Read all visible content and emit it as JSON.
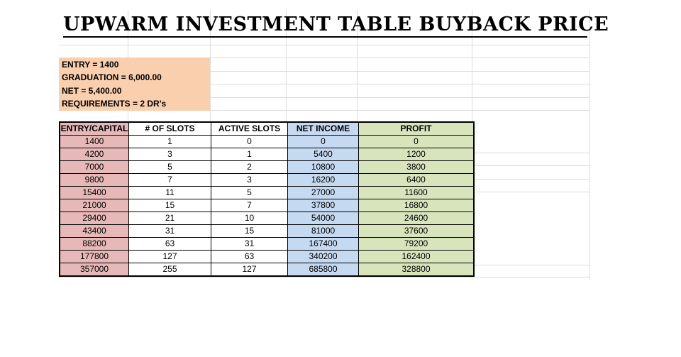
{
  "title": "UPWARM INVESTMENT TABLE BUYBACK PRICE",
  "info": {
    "entry": "ENTRY = 1400",
    "graduation": "GRADUATION = 6,000.00",
    "net": "NET =  5,400.00",
    "requirements": "REQUIREMENTS = 2 DR's"
  },
  "colors": {
    "info_bg": "#f9cfae",
    "entry_col": "#e6b8b7",
    "net_income_col": "#c5d9f1",
    "profit_col": "#d8e4bc"
  },
  "table": {
    "headers": [
      "ENTRY/CAPITAL",
      "# OF SLOTS",
      "ACTIVE SLOTS",
      "NET INCOME",
      "PROFIT"
    ],
    "rows": [
      [
        "1400",
        "1",
        "0",
        "0",
        "0"
      ],
      [
        "4200",
        "3",
        "1",
        "5400",
        "1200"
      ],
      [
        "7000",
        "5",
        "2",
        "10800",
        "3800"
      ],
      [
        "9800",
        "7",
        "3",
        "16200",
        "6400"
      ],
      [
        "15400",
        "11",
        "5",
        "27000",
        "11600"
      ],
      [
        "21000",
        "15",
        "7",
        "37800",
        "16800"
      ],
      [
        "29400",
        "21",
        "10",
        "54000",
        "24600"
      ],
      [
        "43400",
        "31",
        "15",
        "81000",
        "37600"
      ],
      [
        "88200",
        "63",
        "31",
        "167400",
        "79200"
      ],
      [
        "177800",
        "127",
        "63",
        "340200",
        "162400"
      ],
      [
        "357000",
        "255",
        "127",
        "685800",
        "328800"
      ]
    ]
  }
}
